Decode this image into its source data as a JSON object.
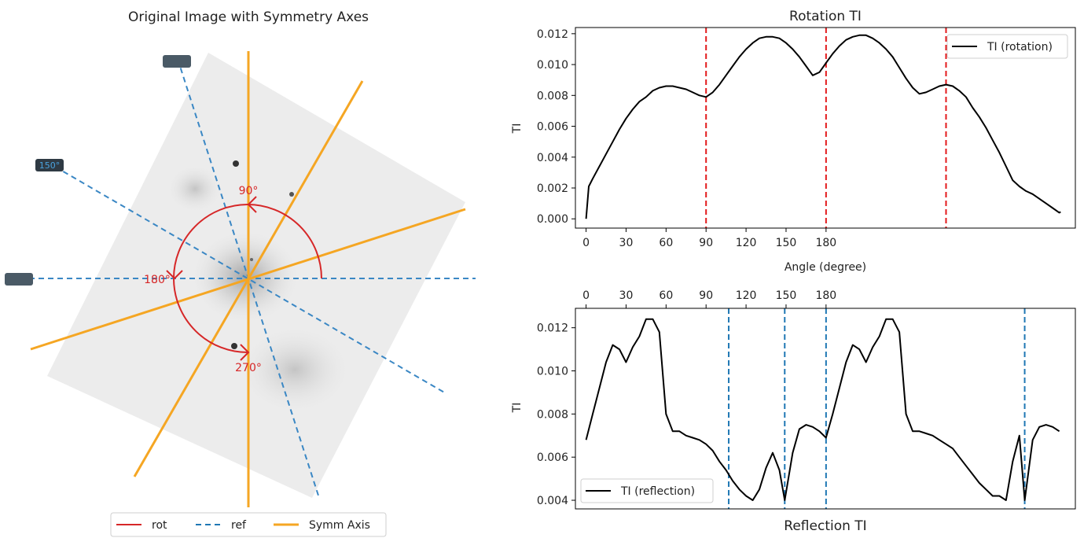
{
  "left_panel": {
    "title": "Original Image with Symmetry Axes",
    "angle_labels": [
      "90°",
      "180°",
      "270°"
    ],
    "edge_tag": "150°",
    "legend": [
      {
        "label": "rot",
        "color": "#d62728",
        "style": "solid"
      },
      {
        "label": "ref",
        "color": "#1f77b4",
        "style": "dashed"
      },
      {
        "label": "Symm Axis",
        "color": "#f5a623",
        "style": "solid"
      }
    ]
  },
  "chart_data": [
    {
      "type": "line",
      "title": "Rotation TI",
      "xlabel": "Angle (degree)",
      "ylabel": "TI",
      "xlim": [
        -8,
        367
      ],
      "ylim": [
        -0.0006,
        0.0124
      ],
      "xticks": [
        0,
        30,
        60,
        90,
        120,
        150,
        180
      ],
      "yticks": [
        0.0,
        0.002,
        0.004,
        0.006,
        0.008,
        0.01,
        0.012
      ],
      "ytick_labels": [
        "0.000",
        "0.002",
        "0.004",
        "0.006",
        "0.008",
        "0.010",
        "0.012"
      ],
      "legend_position": "top-right",
      "vlines": {
        "x": [
          90,
          180,
          270
        ],
        "color": "#e31a1c",
        "style": "dashed"
      },
      "series": [
        {
          "name": "TI (rotation)",
          "color": "#000000",
          "x": [
            0,
            2,
            5,
            10,
            15,
            20,
            25,
            30,
            35,
            40,
            45,
            50,
            55,
            60,
            65,
            70,
            75,
            80,
            85,
            90,
            95,
            100,
            105,
            110,
            115,
            120,
            125,
            130,
            135,
            140,
            145,
            150,
            155,
            160,
            165,
            170,
            175,
            180,
            185,
            190,
            195,
            200,
            205,
            210,
            215,
            220,
            225,
            230,
            235,
            240,
            245,
            250,
            255,
            260,
            265,
            270,
            275,
            280,
            285,
            290,
            295,
            300,
            305,
            310,
            315,
            320,
            325,
            330,
            335,
            340,
            345,
            350,
            355,
            356
          ],
          "y": [
            0.0,
            0.0021,
            0.0026,
            0.0034,
            0.0042,
            0.005,
            0.0058,
            0.0065,
            0.0071,
            0.0076,
            0.0079,
            0.0083,
            0.0085,
            0.0086,
            0.0086,
            0.0085,
            0.0084,
            0.0082,
            0.008,
            0.0079,
            0.0082,
            0.0087,
            0.0093,
            0.0099,
            0.0105,
            0.011,
            0.0114,
            0.0117,
            0.0118,
            0.0118,
            0.0117,
            0.0114,
            0.011,
            0.0105,
            0.0099,
            0.0093,
            0.0095,
            0.0101,
            0.0107,
            0.0112,
            0.0116,
            0.0118,
            0.0119,
            0.0119,
            0.0117,
            0.0114,
            0.011,
            0.0105,
            0.0098,
            0.0091,
            0.0085,
            0.0081,
            0.0082,
            0.0084,
            0.0086,
            0.0087,
            0.0086,
            0.0083,
            0.0079,
            0.0072,
            0.0066,
            0.0059,
            0.0051,
            0.0043,
            0.0034,
            0.0025,
            0.0021,
            0.0018,
            0.0016,
            0.0013,
            0.001,
            0.0007,
            0.0004,
            0.00045
          ]
        }
      ]
    },
    {
      "type": "line",
      "title": "Reflection TI",
      "xlabel": "",
      "ylabel": "TI",
      "xlim": [
        -8,
        367
      ],
      "ylim": [
        0.0036,
        0.0129
      ],
      "xticks": [
        0,
        30,
        60,
        90,
        120,
        150,
        180
      ],
      "xticks_position": "top",
      "yticks": [
        0.004,
        0.006,
        0.008,
        0.01,
        0.012
      ],
      "ytick_labels": [
        "0.004",
        "0.006",
        "0.008",
        "0.010",
        "0.012"
      ],
      "legend_position": "bottom-left",
      "vlines": {
        "x": [
          107,
          149,
          180,
          329
        ],
        "color": "#1f77b4",
        "style": "dashed"
      },
      "series": [
        {
          "name": "TI (reflection)",
          "color": "#000000",
          "x": [
            0,
            5,
            10,
            15,
            20,
            25,
            30,
            35,
            40,
            45,
            50,
            55,
            60,
            65,
            70,
            75,
            80,
            85,
            90,
            95,
            100,
            105,
            110,
            115,
            120,
            125,
            130,
            135,
            140,
            145,
            149,
            155,
            160,
            165,
            170,
            175,
            180,
            185,
            190,
            195,
            200,
            205,
            210,
            215,
            220,
            225,
            230,
            235,
            240,
            245,
            250,
            255,
            260,
            265,
            270,
            275,
            280,
            285,
            290,
            295,
            300,
            305,
            310,
            315,
            320,
            325,
            329,
            335,
            340,
            345,
            350,
            355
          ],
          "y": [
            0.0068,
            0.008,
            0.0092,
            0.0104,
            0.0112,
            0.011,
            0.0104,
            0.0111,
            0.0116,
            0.0124,
            0.0124,
            0.0118,
            0.008,
            0.0072,
            0.0072,
            0.007,
            0.0069,
            0.0068,
            0.0066,
            0.0063,
            0.0058,
            0.0054,
            0.0049,
            0.0045,
            0.0042,
            0.004,
            0.0045,
            0.0055,
            0.0062,
            0.0054,
            0.004,
            0.0062,
            0.0073,
            0.0075,
            0.0074,
            0.0072,
            0.0069,
            0.008,
            0.0092,
            0.0104,
            0.0112,
            0.011,
            0.0104,
            0.0111,
            0.0116,
            0.0124,
            0.0124,
            0.0118,
            0.008,
            0.0072,
            0.0072,
            0.0071,
            0.007,
            0.0068,
            0.0066,
            0.0064,
            0.006,
            0.0056,
            0.0052,
            0.0048,
            0.0045,
            0.0042,
            0.0042,
            0.004,
            0.0058,
            0.007,
            0.004,
            0.0068,
            0.0074,
            0.0075,
            0.0074,
            0.0072
          ]
        }
      ]
    }
  ]
}
